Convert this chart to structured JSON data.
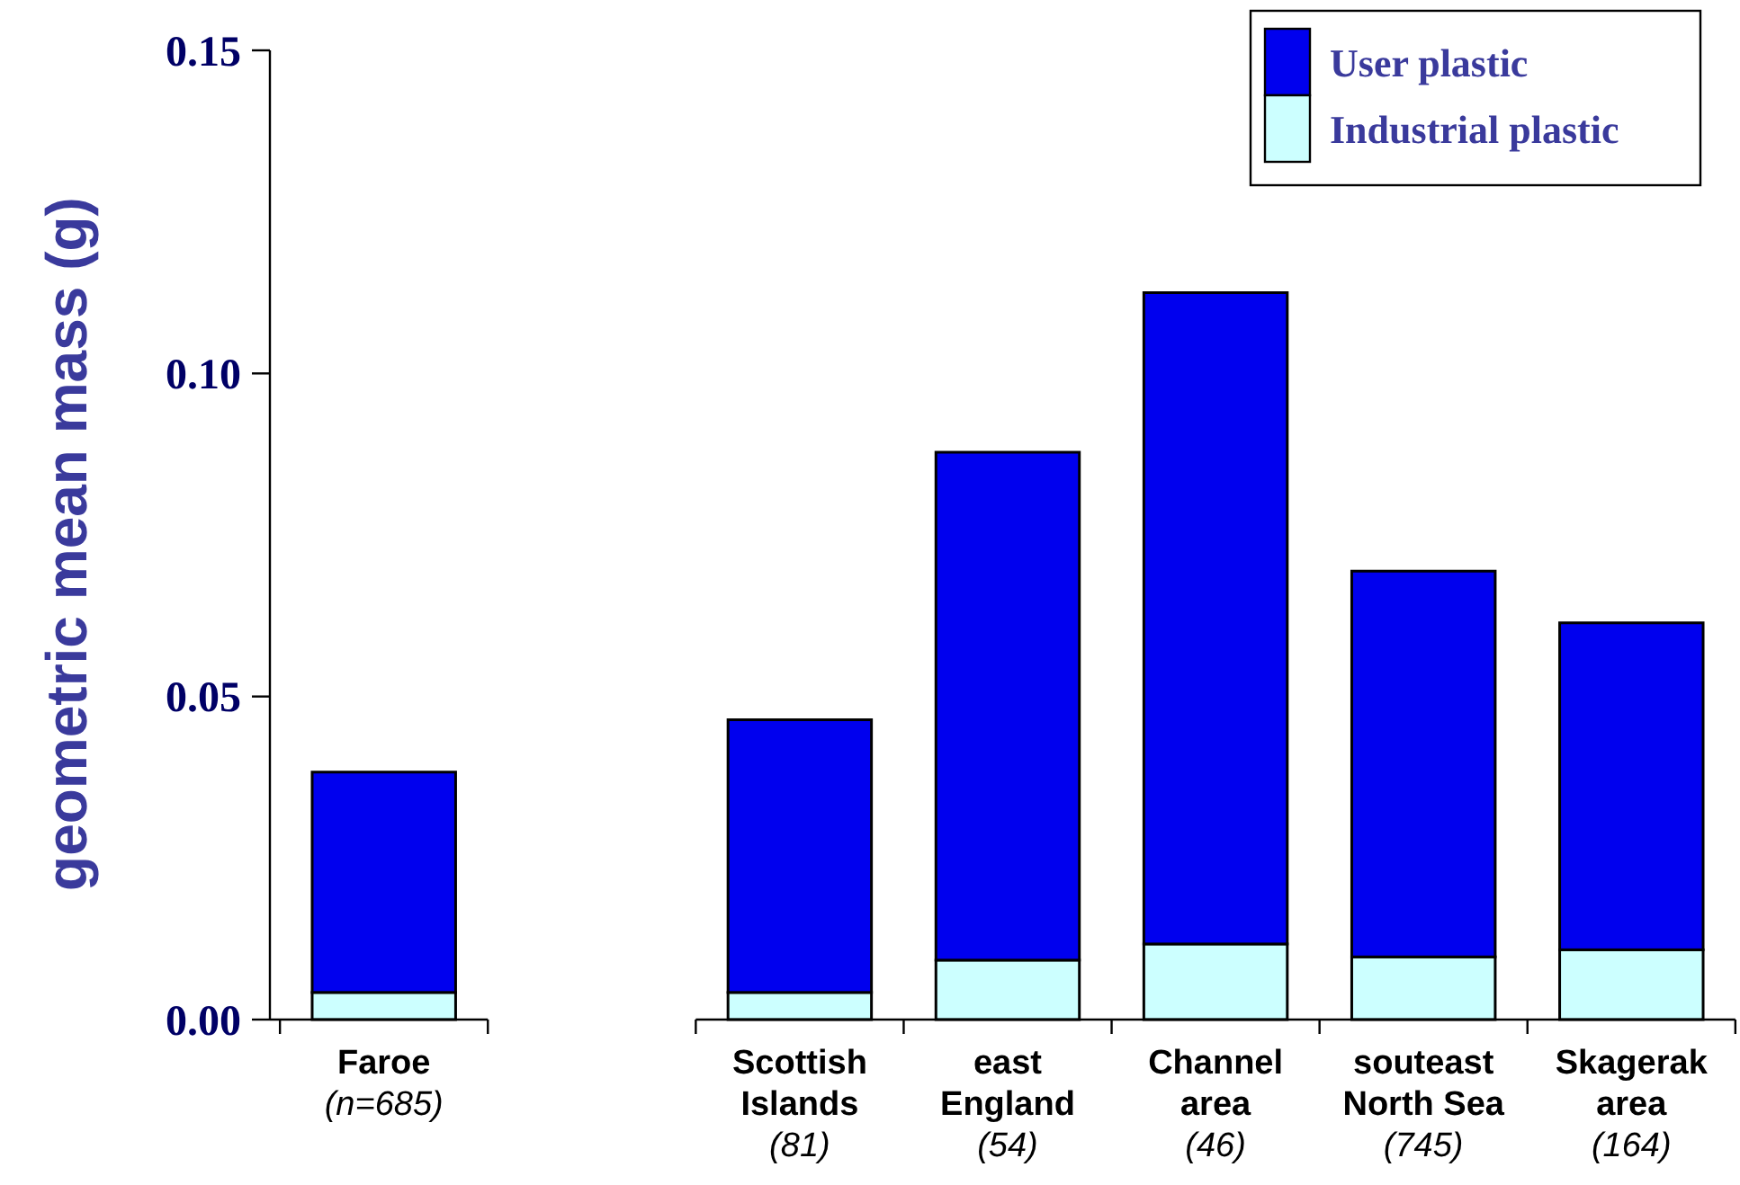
{
  "chart_data": {
    "type": "bar",
    "ylabel": "geometric mean mass (g)",
    "stacked": true,
    "categories": [
      "Faroe\n(n=685)",
      null,
      "Scottish\nIslands\n(81)",
      "east\nEngland\n(54)",
      "Channel\narea\n(46)",
      "souteast\nNorth Sea\n(745)",
      "Skagerak\narea\n(164)"
    ],
    "series": [
      {
        "name": "Industrial plastic",
        "color": "#ccffff",
        "values": [
          0.0042,
          null,
          0.0042,
          0.0092,
          0.0117,
          0.0097,
          0.0108
        ]
      },
      {
        "name": "User plastic",
        "color": "#0000ee",
        "values": [
          0.0341,
          null,
          0.0422,
          0.0786,
          0.1008,
          0.0597,
          0.0506
        ]
      }
    ],
    "ylim": [
      0,
      0.15
    ],
    "yticks": [
      {
        "value": 0,
        "label": "0.00"
      },
      {
        "value": 0.05,
        "label": "0.05"
      },
      {
        "value": 0.1,
        "label": "0.10"
      },
      {
        "value": 0.15,
        "label": "0.15"
      }
    ],
    "legend": "top right"
  }
}
